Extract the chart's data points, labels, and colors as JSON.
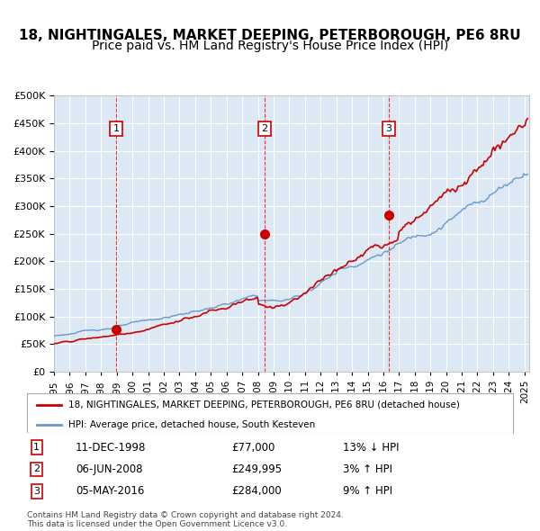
{
  "title": "18, NIGHTINGALES, MARKET DEEPING, PETERBOROUGH, PE6 8RU",
  "subtitle": "Price paid vs. HM Land Registry's House Price Index (HPI)",
  "red_label": "18, NIGHTINGALES, MARKET DEEPING, PETERBOROUGH, PE6 8RU (detached house)",
  "blue_label": "HPI: Average price, detached house, South Kesteven",
  "footer1": "Contains HM Land Registry data © Crown copyright and database right 2024.",
  "footer2": "This data is licensed under the Open Government Licence v3.0.",
  "transactions": [
    {
      "num": 1,
      "date": "11-DEC-1998",
      "price": "£77,000",
      "hpi": "13% ↓ HPI",
      "year": 1998.95
    },
    {
      "num": 2,
      "date": "06-JUN-2008",
      "price": "£249,995",
      "hpi": "3% ↑ HPI",
      "year": 2008.43
    },
    {
      "num": 3,
      "date": "05-MAY-2016",
      "price": "£284,000",
      "hpi": "9% ↑ HPI",
      "year": 2016.34
    }
  ],
  "background_color": "#dce9f5",
  "plot_bg_color": "#dce9f5",
  "ylim": [
    0,
    500000
  ],
  "xlim_start": 1995.0,
  "xlim_end": 2025.3,
  "red_color": "#cc0000",
  "blue_color": "#6699cc",
  "title_fontsize": 11,
  "subtitle_fontsize": 10
}
